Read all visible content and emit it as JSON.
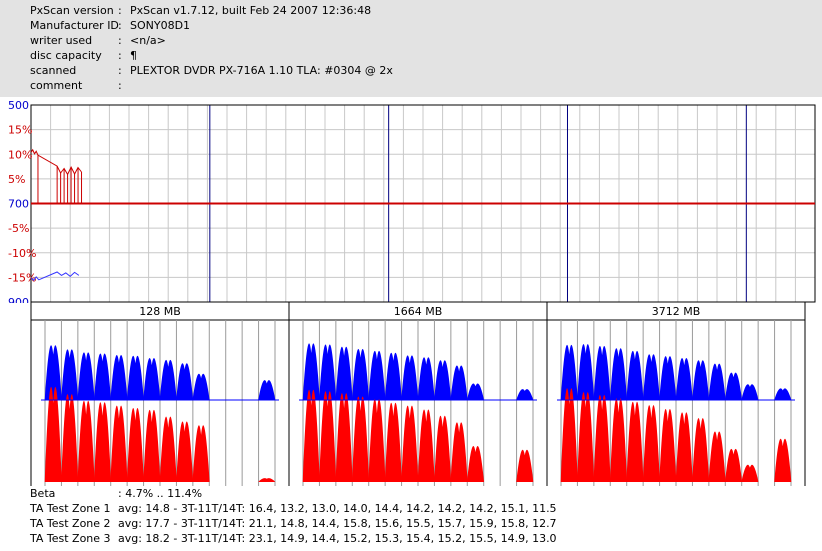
{
  "header": {
    "rows": [
      {
        "key": "PxScan version",
        "colon": ":",
        "value": "PxScan v1.7.12, built Feb 24 2007 12:36:48"
      },
      {
        "key": "Manufacturer ID",
        "colon": ":",
        "value": "SONY08D1"
      },
      {
        "key": "writer used",
        "colon": ":",
        "value": "<n/a>"
      },
      {
        "key": "disc capacity",
        "colon": ":",
        "value": "¶"
      },
      {
        "key": "scanned",
        "colon": ":",
        "value": "PLEXTOR DVDR PX-716A 1.10 TLA: #0304 @ 2x"
      },
      {
        "key": "comment",
        "colon": ":",
        "value": ""
      }
    ]
  },
  "colors": {
    "axis_label": "#0000cc",
    "left_label": "#cc0000",
    "jitter_line": "#cc0000",
    "asym": "#3333ff",
    "lands": "#0000ff",
    "pits": "#ff0000",
    "grid_light": "#c8c8c8",
    "grid_dark": "#000080"
  },
  "chart_data": [
    {
      "type": "line",
      "ylabels": [
        "500",
        "15%",
        "10%",
        "5%",
        "700",
        "-5%",
        "-10%",
        "-15%",
        "900"
      ],
      "xlim": [
        0,
        4500
      ],
      "series": [
        {
          "values": [
            [
              0,
              700
            ],
            [
              4500,
              700
            ]
          ]
        },
        {
          "values": [
            [
              0,
              10.4
            ],
            [
              10,
              10.9
            ],
            [
              20,
              10.1
            ],
            [
              30,
              10.6
            ],
            [
              40,
              9.8
            ],
            [
              150,
              7.6
            ],
            [
              170,
              6.2
            ],
            [
              190,
              7.1
            ],
            [
              210,
              5.9
            ],
            [
              230,
              7.4
            ],
            [
              250,
              6.0
            ],
            [
              270,
              7.3
            ],
            [
              290,
              6.4
            ]
          ]
        },
        {
          "values": [
            [
              0,
              -15.1
            ],
            [
              15,
              -15.6
            ],
            [
              30,
              -14.9
            ],
            [
              45,
              -15.5
            ],
            [
              150,
              -13.9
            ],
            [
              175,
              -14.6
            ],
            [
              200,
              -14.1
            ],
            [
              225,
              -14.8
            ],
            [
              250,
              -14.0
            ],
            [
              275,
              -14.6
            ]
          ]
        }
      ]
    },
    {
      "type": "area",
      "categories": [
        "128 MB",
        "1664 MB",
        "3712 MB"
      ],
      "zones": [
        {
          "lands": [
            14.6,
            13.5,
            12.7,
            12.4,
            12.0,
            11.8,
            11.2,
            10.7,
            9.8,
            7.0,
            0,
            0,
            0,
            5.3
          ],
          "pits": [
            19.8,
            18.3,
            16.9,
            16.6,
            15.9,
            15.4,
            15.0,
            13.6,
            12.6,
            11.8,
            0,
            0,
            0,
            0.8
          ]
        },
        {
          "lands": [
            15.1,
            14.8,
            14.2,
            13.6,
            13.1,
            12.6,
            11.9,
            11.4,
            10.6,
            9.2,
            4.4,
            0,
            0,
            2.9
          ],
          "pits": [
            19.2,
            18.9,
            18.5,
            17.8,
            17.3,
            16.5,
            15.9,
            15.1,
            13.8,
            12.4,
            7.5,
            0,
            0,
            6.7
          ]
        },
        {
          "lands": [
            14.7,
            14.9,
            14.4,
            13.8,
            13.1,
            12.2,
            11.7,
            11.2,
            10.6,
            9.7,
            7.3,
            4.2,
            0,
            3.1
          ],
          "pits": [
            19.5,
            18.7,
            18.1,
            17.4,
            16.7,
            16.0,
            15.2,
            14.5,
            13.3,
            10.5,
            6.9,
            3.6,
            0,
            9.0
          ]
        }
      ],
      "ylim": [
        0,
        25
      ]
    }
  ],
  "bottom": {
    "beta": {
      "key": "Beta",
      "value": ": 4.7% .. 11.4%"
    },
    "zones": [
      {
        "key": "TA Test Zone 1",
        "value": "avg: 14.8 - 3T-11T/14T: 16.4, 13.2, 13.0, 14.0, 14.4, 14.2, 14.2, 14.2, 15.1, 11.5"
      },
      {
        "key": "TA Test Zone 2",
        "value": "avg: 17.7 - 3T-11T/14T: 21.1, 14.8, 14.4, 15.8, 15.6, 15.5, 15.7, 15.9, 15.8, 12.7"
      },
      {
        "key": "TA Test Zone 3",
        "value": "avg: 18.2 - 3T-11T/14T: 23.1, 14.9, 14.4, 15.2, 15.3, 15.4, 15.2, 15.5, 14.9, 13.0"
      }
    ]
  }
}
